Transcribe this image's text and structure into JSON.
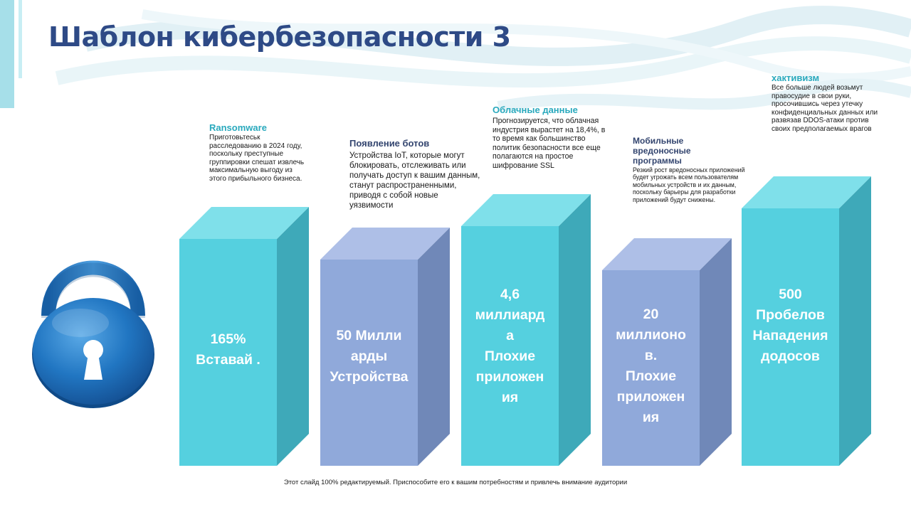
{
  "title": "Шаблон кибербезопасности 3",
  "colors": {
    "title": "#2e4a86",
    "teal_heading": "#29a9bd",
    "navy_heading": "#33456f",
    "teal_front": "#55d0df",
    "teal_top": "#7fe0ea",
    "teal_side": "#3ea9b9",
    "lav_front": "#90a9da",
    "lav_top": "#aebfe7",
    "lav_side": "#7088b8",
    "lock": "#2176c2"
  },
  "columns": [
    {
      "heading": "Ransomware",
      "text": "Приготовьтеськ расследованию в 2024 году, поскольку преступные группировки спешат извлечь максимальную выгоду из этого прибыльного бизнеса.",
      "bar_label": "165%\nВставай .",
      "relative_height": 0.88,
      "color": "teal"
    },
    {
      "heading": "Появление ботов",
      "text": "Устройства IoT, которые могут блокировать, отслеживать или получать доступ к вашим данным, станут распространенными, приводя с собой новые уязвимости",
      "bar_label": "50  Милли\nарды\nУстройства",
      "relative_height": 0.8,
      "color": "lavender"
    },
    {
      "heading": "Облачные данные",
      "text": "Прогнозируется, что облачная индустрия вырастет на 18,4%, в то время как большинство политик безопасности все еще полагаются на простое шифрование SSL",
      "bar_label": "4,6\nмиллиард\nа\nПлохие\nприложен\nия",
      "relative_height": 0.93,
      "color": "teal"
    },
    {
      "heading": "Мобильные вредоносные программы",
      "text": "Резкий рост вредоносных приложений будет угрожать всем пользователям мобильных устройств и их данным, поскольку барьеры для разработки приложений будут снижены.",
      "bar_label": "20\nмиллионо\nв.\nПлохие\nприложен\nия",
      "relative_height": 0.76,
      "color": "lavender"
    },
    {
      "heading": "хактивизм",
      "text": "Все больше людей возьмут правосудие в свои руки, просочившись через утечку конфиденциальных данных или развязав DDOS-атаки против своих предполагаемых врагов",
      "bar_label": "500\nПробелов\nНападения\nдодосов",
      "relative_height": 1.0,
      "color": "teal"
    }
  ],
  "footer": "Этот слайд 100% редактируемый. Приспособите его к вашим потребностям и привлечь внимание аудитории"
}
